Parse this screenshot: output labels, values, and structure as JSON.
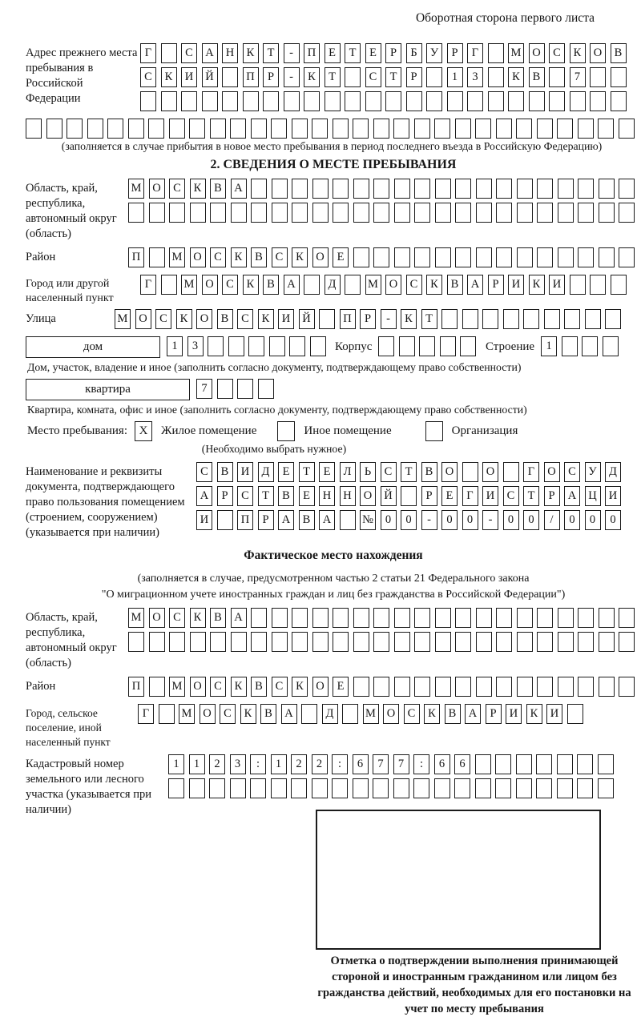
{
  "header": {
    "page_note": "Оборотная сторона первого листа"
  },
  "prev_address": {
    "label": "Адрес прежнего места пребывания в Российской Федерации",
    "row1": "Г САНКТ-ПЕТЕРБУРГ МОСКОВ",
    "row2": "СКИЙ ПР-КТ СТР 13 КВ 7  ",
    "row3": "                        ",
    "row4": "                              ",
    "note": "(заполняется в случае прибытия в новое место пребывания в период последнего въезда в Российскую Федерацию)"
  },
  "section2": {
    "title": "2. СВЕДЕНИЯ О МЕСТЕ ПРЕБЫВАНИЯ",
    "region": {
      "label": "Область, край, республика, автономный округ (область)",
      "row1": "МОСКВА                   ",
      "row2": "                         "
    },
    "district": {
      "label": "Район",
      "row": "П МОСКВСКОЕ              "
    },
    "city": {
      "label": "Город или другой населенный пункт",
      "row": "Г МОСКВА Д МОСКВАРИКИ   "
    },
    "street": {
      "label": "Улица",
      "row": "МОСКОВСКИЙ ПР-КТ         "
    },
    "house": {
      "house_label": "дом",
      "house_cells": "13      ",
      "korpus_label": "Корпус",
      "korpus_cells": "     ",
      "stroenie_label": "Строение",
      "stroenie_cells": "1   "
    },
    "house_caption": "Дом, участок, владение и иное (заполнить согласно документу, подтверждающему право собственности)",
    "apartment": {
      "label": "квартира",
      "cells": "7   "
    },
    "apartment_caption": "Квартира, комната, офис и иное (заполнить согласно документу, подтверждающему право собственности)",
    "stay": {
      "label": "Место пребывания:",
      "options": [
        {
          "mark": "X",
          "label": "Жилое помещение"
        },
        {
          "mark": "",
          "label": "Иное помещение"
        },
        {
          "mark": "",
          "label": "Организация"
        }
      ],
      "note": "(Необходимо выбрать нужное)"
    },
    "document": {
      "label": "Наименование и реквизиты документа, подтверждающего право пользования помещением (строением, сооружением) (указывается при наличии)",
      "row1": "СВИДЕТЕЛЬСТВО О ГОСУД",
      "row2": "АРСТВЕННОЙ РЕГИСТРАЦИ",
      "row3": "И ПРАВА №00-00-00/000"
    }
  },
  "actual": {
    "title": "Фактическое место нахождения",
    "note_line1": "(заполняется в случае, предусмотренном частью 2 статьи 21 Федерального закона",
    "note_line2": "\"О миграционном учете иностранных граждан и лиц без гражданства в Российской Федерации\")",
    "region": {
      "label": "Область, край, республика, автономный округ (область)",
      "row1": "МОСКВА                   ",
      "row2": "                         "
    },
    "district": {
      "label": "Район",
      "row": "П МОСКВСКОЕ              "
    },
    "city": {
      "label": "Город, сельское поселение, иной населенный пункт",
      "row": "Г МОСКВА Д МОСКВАРИКИ "
    },
    "cadastral": {
      "label": "Кадастровый номер земельного или лесного участка (указывается при наличии)",
      "row1": "1123:122:677:66       ",
      "row2": "                      "
    },
    "stamp_caption": "Отметка о подтверждении выполнения принимающей стороной и иностранным гражданином или лицом без гражданства действий, необходимых для его постановки на учет по месту пребывания"
  }
}
